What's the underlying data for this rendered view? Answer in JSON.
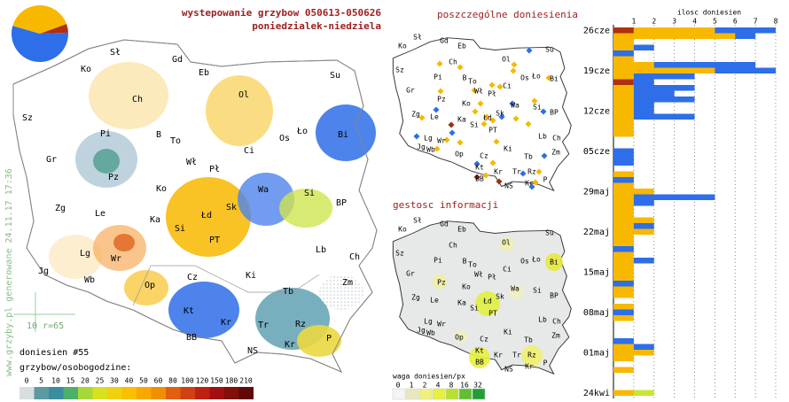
{
  "header": {
    "title": "wystepowanie grzybow 050613-050626",
    "subtitle": "poniedzialek-niedziela"
  },
  "main_map": {
    "cities": [
      "Sł",
      "Gd",
      "Ko",
      "Eb",
      "Su",
      "Ch",
      "Ol",
      "Sz",
      "Pi",
      "B",
      "To",
      "Os",
      "Ło",
      "Bi",
      "Gr",
      "Ci",
      "Wł",
      "Pł",
      "Pz",
      "Ko",
      "Wa",
      "Si",
      "BP",
      "Zg",
      "Le",
      "Ka",
      "Łd",
      "Sk",
      "Si",
      "PT",
      "Lg",
      "Wr",
      "Lb",
      "Ch",
      "Jg",
      "Wb",
      "Op",
      "Ki",
      "Cz",
      "Tb",
      "Zm",
      "Kt",
      "Kr",
      "Rz",
      "Tr",
      "BB",
      "Kr",
      "P",
      "NS"
    ],
    "site": "www.grzyby.pl generowane 24.11.17 17:36",
    "scale_label": "10 r=65",
    "reports": "doniesien #55",
    "legend": {
      "title": "grzybow/osobogodzine:",
      "labels": [
        0,
        5,
        10,
        15,
        20,
        25,
        30,
        40,
        50,
        60,
        80,
        100,
        120,
        150,
        180,
        210
      ],
      "colors": [
        "#d8dde0",
        "#5a9aa0",
        "#3c8ca0",
        "#4cb06a",
        "#a8d838",
        "#d8e020",
        "#f0d010",
        "#f8c000",
        "#f8a800",
        "#f09000",
        "#e06010",
        "#d04010",
        "#c02010",
        "#a01010",
        "#801008",
        "#600808"
      ]
    }
  },
  "points_map": {
    "title": "poszczególne doniesienia",
    "cities": [
      "Sł",
      "Gd",
      "Ko",
      "Eb",
      "Su",
      "Ch",
      "Ol",
      "Sz",
      "Pi",
      "B",
      "To",
      "Os",
      "Ło",
      "Bi",
      "Wł",
      "Pł",
      "Ci",
      "Gr",
      "Pz",
      "Ko",
      "Wa",
      "Si",
      "BP",
      "Zg",
      "Le",
      "Ka",
      "Łd",
      "Sk",
      "Si",
      "PT",
      "Lg",
      "Wr",
      "Lb",
      "Ch",
      "Jg",
      "Wb",
      "Op",
      "Ki",
      "Cz",
      "Tb",
      "Zm",
      "Kt",
      "Kr",
      "Tr",
      "Rz",
      "P",
      "BB",
      "NS",
      "Kr"
    ]
  },
  "density_map": {
    "title": "gestosc informacji",
    "cities": [
      "Sł",
      "Gd",
      "Ko",
      "Eb",
      "Su",
      "Ch",
      "Ol",
      "Sz",
      "Pi",
      "B",
      "To",
      "Os",
      "Ło",
      "Bi",
      "Wł",
      "Pł",
      "Ci",
      "Gr",
      "Pz",
      "Ko",
      "Wa",
      "Si",
      "BP",
      "Zg",
      "Le",
      "Ka",
      "Łd",
      "Sk",
      "Si",
      "PT",
      "Lg",
      "Wr",
      "Lb",
      "Ch",
      "Jg",
      "Wb",
      "Op",
      "Ki",
      "Cz",
      "Tb",
      "Zm",
      "Kt",
      "Kr",
      "Tr",
      "Rz",
      "P",
      "BB",
      "NS",
      "Kr"
    ],
    "legend": {
      "title": "waga doniesien/px",
      "labels": [
        0,
        1,
        2,
        4,
        8,
        16,
        32
      ],
      "colors": [
        "#f4f4f4",
        "#e8e8c0",
        "#f0f080",
        "#e8f040",
        "#b8e030",
        "#60c030",
        "#20a030"
      ]
    }
  },
  "chart_data": [
    {
      "type": "pie",
      "values": [
        5,
        55,
        40
      ],
      "colors": [
        "#b03010",
        "#2e6ee8",
        "#f8b800"
      ]
    },
    {
      "type": "bar",
      "orientation": "horizontal",
      "stacked": true,
      "title": "ilosc doniesien",
      "categories": [
        "26cze",
        null,
        null,
        null,
        null,
        null,
        null,
        "19cze",
        null,
        null,
        null,
        null,
        null,
        null,
        "12cze",
        null,
        null,
        null,
        null,
        null,
        null,
        "05cze",
        null,
        null,
        null,
        null,
        null,
        null,
        "29maj",
        null,
        null,
        null,
        null,
        null,
        null,
        "22maj",
        null,
        null,
        null,
        null,
        null,
        null,
        "15maj",
        null,
        null,
        null,
        null,
        null,
        null,
        "08maj",
        null,
        null,
        null,
        null,
        null,
        null,
        "01maj",
        null,
        null,
        null,
        null,
        null,
        null,
        "24kwi"
      ],
      "series": [
        {
          "color": "#b03010",
          "values": [
            1,
            0,
            0,
            0,
            0,
            0,
            0,
            0,
            0,
            1,
            0,
            0,
            0,
            0,
            0,
            0,
            0,
            0,
            0,
            0,
            0,
            0,
            0,
            0,
            0,
            0,
            0,
            0,
            0,
            0,
            0,
            0,
            0,
            0,
            0,
            0,
            0,
            0,
            0,
            0,
            0,
            0,
            0,
            0,
            0,
            0,
            0,
            0,
            0,
            0,
            0,
            0,
            0,
            0,
            0,
            0,
            0,
            0,
            0,
            0,
            0,
            0,
            0,
            0
          ]
        },
        {
          "color": "#f8b800",
          "values": [
            4,
            6,
            1,
            1,
            0,
            1,
            2,
            5,
            1,
            0,
            1,
            1,
            1,
            1,
            1,
            1,
            1,
            1,
            1,
            0,
            0,
            0,
            0,
            0,
            0,
            1,
            0,
            1,
            2,
            1,
            1,
            1,
            1,
            2,
            1,
            2,
            1,
            1,
            0,
            1,
            1,
            1,
            1,
            1,
            0,
            1,
            1,
            0,
            1,
            0,
            1,
            0,
            0,
            0,
            0,
            1,
            2,
            1,
            0,
            1,
            0,
            0,
            0,
            1
          ]
        },
        {
          "color": "#2e6ee8",
          "values": [
            3,
            1,
            0,
            1,
            1,
            0,
            5,
            3,
            3,
            1,
            3,
            2,
            3,
            1,
            1,
            3,
            0,
            0,
            0,
            0,
            0,
            1,
            1,
            1,
            0,
            0,
            1,
            0,
            0,
            4,
            1,
            0,
            0,
            0,
            1,
            0,
            0,
            0,
            1,
            0,
            1,
            0,
            0,
            0,
            1,
            0,
            0,
            0,
            0,
            1,
            0,
            0,
            0,
            0,
            1,
            1,
            0,
            0,
            0,
            0,
            0,
            0,
            0,
            0
          ]
        },
        {
          "color": "#c8e632",
          "values": [
            0,
            0,
            0,
            0,
            0,
            0,
            0,
            0,
            0,
            0,
            0,
            0,
            0,
            0,
            0,
            0,
            0,
            0,
            0,
            0,
            0,
            0,
            0,
            0,
            0,
            0,
            0,
            0,
            0,
            0,
            0,
            0,
            0,
            0,
            0,
            0,
            0,
            0,
            0,
            0,
            0,
            0,
            0,
            0,
            0,
            0,
            0,
            0,
            0,
            0,
            0,
            0,
            0,
            0,
            0,
            0,
            0,
            0,
            0,
            0,
            0,
            0,
            0,
            1
          ]
        }
      ],
      "xlim": [
        0,
        8
      ],
      "xticks": [
        1,
        2,
        3,
        4,
        5,
        6,
        7,
        8
      ]
    }
  ]
}
